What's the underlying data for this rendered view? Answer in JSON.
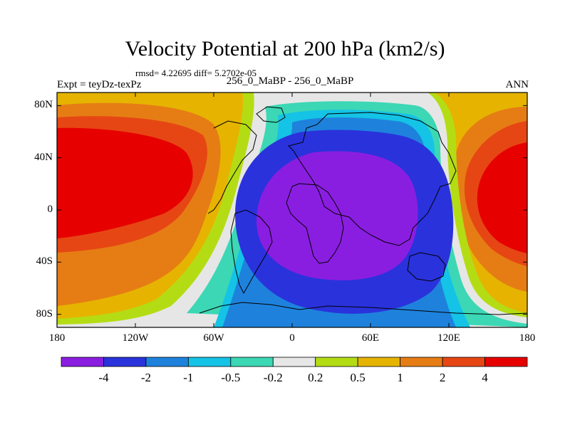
{
  "title": "Velocity Potential at 200 hPa (km2/s)",
  "stats": "rmsd= 4.22695 diff= 5.2702e-05",
  "experiment": "Expt = teyDz-texPz",
  "case": "256_0_MaBP - 256_0_MaBP",
  "season": "ANN",
  "chart_data": {
    "type": "heatmap",
    "projection": "cylindrical-equidistant",
    "x_ticks": [
      "180",
      "120W",
      "60W",
      "0",
      "60E",
      "120E",
      "180"
    ],
    "x_tick_values": [
      -180,
      -120,
      -60,
      0,
      60,
      120,
      180
    ],
    "y_ticks": [
      "80N",
      "40N",
      "0",
      "40S",
      "80S"
    ],
    "y_tick_values": [
      80,
      40,
      0,
      -40,
      -80
    ],
    "xlim": [
      -180,
      180
    ],
    "ylim": [
      -90,
      90
    ],
    "units": "km2/s",
    "colorbar": {
      "levels": [
        -4,
        -2,
        -1,
        -0.5,
        -0.2,
        0.2,
        0.5,
        1,
        2,
        4
      ],
      "labels": [
        "-4",
        "-2",
        "-1",
        "-0.5",
        "-0.2",
        "0.2",
        "0.5",
        "1",
        "2",
        "4"
      ],
      "colors": [
        "#8a1ee0",
        "#2a32dc",
        "#1e82dc",
        "#14c3e6",
        "#3cd7b4",
        "#e6e6e6",
        "#b4dc14",
        "#e6b400",
        "#e67d14",
        "#e64614",
        "#e60000"
      ]
    },
    "extrema": {
      "minimum_center": [
        50,
        0
      ],
      "maximum_center": [
        -160,
        15
      ]
    }
  }
}
